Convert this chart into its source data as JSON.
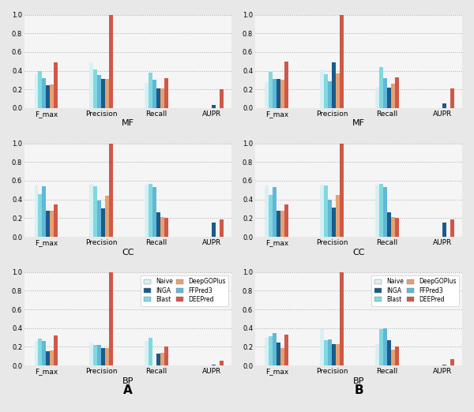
{
  "panels": [
    {
      "label": "MF",
      "col": 0,
      "row": 0,
      "values": {
        "Naive": [
          0.36,
          0.49,
          0.27,
          0.0
        ],
        "Blast": [
          0.4,
          0.41,
          0.38,
          0.0
        ],
        "FFPred3": [
          0.32,
          0.35,
          0.3,
          0.0
        ],
        "INGA": [
          0.24,
          0.31,
          0.21,
          0.03
        ],
        "DeepGOPlus": [
          0.25,
          0.31,
          0.21,
          0.0
        ],
        "DEEPred": [
          0.49,
          1.0,
          0.32,
          0.2
        ]
      }
    },
    {
      "label": "MF",
      "col": 1,
      "row": 0,
      "values": {
        "Naive": [
          0.28,
          0.41,
          0.23,
          0.0
        ],
        "Blast": [
          0.39,
          0.36,
          0.44,
          0.0
        ],
        "FFPred3": [
          0.31,
          0.29,
          0.32,
          0.0
        ],
        "INGA": [
          0.31,
          0.49,
          0.22,
          0.05
        ],
        "DeepGOPlus": [
          0.3,
          0.37,
          0.26,
          0.0
        ],
        "DEEPred": [
          0.5,
          1.0,
          0.33,
          0.21
        ]
      }
    },
    {
      "label": "CC",
      "col": 0,
      "row": 1,
      "values": {
        "Naive": [
          0.55,
          0.57,
          0.56,
          0.0
        ],
        "Blast": [
          0.46,
          0.54,
          0.57,
          0.0
        ],
        "FFPred3": [
          0.54,
          0.39,
          0.53,
          0.0
        ],
        "INGA": [
          0.28,
          0.3,
          0.26,
          0.15
        ],
        "DeepGOPlus": [
          0.28,
          0.44,
          0.21,
          0.0
        ],
        "DEEPred": [
          0.35,
          1.0,
          0.2,
          0.19
        ]
      }
    },
    {
      "label": "CC",
      "col": 1,
      "row": 1,
      "values": {
        "Naive": [
          0.55,
          0.56,
          0.56,
          0.0
        ],
        "Blast": [
          0.45,
          0.55,
          0.57,
          0.0
        ],
        "FFPred3": [
          0.53,
          0.4,
          0.53,
          0.0
        ],
        "INGA": [
          0.28,
          0.31,
          0.26,
          0.15
        ],
        "DeepGOPlus": [
          0.28,
          0.45,
          0.21,
          0.0
        ],
        "DEEPred": [
          0.35,
          1.0,
          0.2,
          0.19
        ]
      }
    },
    {
      "label": "BP",
      "col": 0,
      "row": 2,
      "values": {
        "Naive": [
          0.26,
          0.25,
          0.26,
          0.0
        ],
        "Blast": [
          0.29,
          0.22,
          0.3,
          0.0
        ],
        "FFPred3": [
          0.26,
          0.22,
          0.0,
          0.0
        ],
        "INGA": [
          0.15,
          0.19,
          0.13,
          0.01
        ],
        "DeepGOPlus": [
          0.16,
          0.19,
          0.14,
          0.0
        ],
        "DEEPred": [
          0.32,
          1.0,
          0.2,
          0.05
        ]
      }
    },
    {
      "label": "BP",
      "col": 1,
      "row": 2,
      "values": {
        "Naive": [
          0.3,
          0.39,
          0.23,
          0.0
        ],
        "Blast": [
          0.31,
          0.27,
          0.39,
          0.0
        ],
        "FFPred3": [
          0.35,
          0.28,
          0.4,
          0.0
        ],
        "INGA": [
          0.25,
          0.23,
          0.27,
          0.01
        ],
        "DeepGOPlus": [
          0.19,
          0.23,
          0.17,
          0.0
        ],
        "DEEPred": [
          0.33,
          1.0,
          0.2,
          0.07
        ]
      }
    }
  ],
  "methods": [
    "Naive",
    "Blast",
    "FFPred3",
    "INGA",
    "DeepGOPlus",
    "DEEPred"
  ],
  "colors": {
    "Naive": "#d8f0f4",
    "Blast": "#80d8e0",
    "FFPred3": "#60b8d8",
    "INGA": "#1a5b8a",
    "DeepGOPlus": "#e8a070",
    "DEEPred": "#d05848"
  },
  "bg_color": "#e8e8e8",
  "panel_bg": "#f5f5f5",
  "col_labels": [
    "A",
    "B"
  ],
  "ylim": [
    0.0,
    1.0
  ],
  "yticks": [
    0.0,
    0.2,
    0.4,
    0.6,
    0.8,
    1.0
  ]
}
